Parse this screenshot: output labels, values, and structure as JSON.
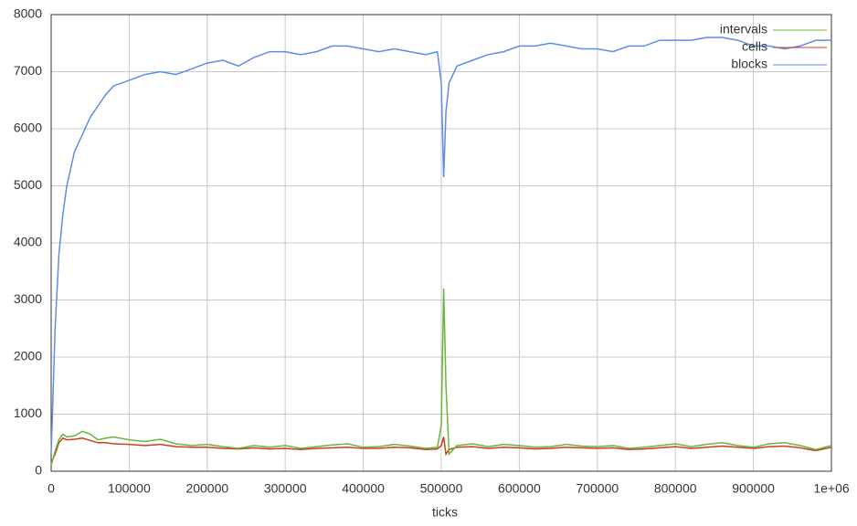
{
  "chart_data": {
    "type": "line",
    "x_label": "ticks",
    "x": [
      0,
      5000,
      10000,
      15000,
      20000,
      30000,
      40000,
      50000,
      60000,
      70000,
      80000,
      100000,
      120000,
      140000,
      160000,
      180000,
      200000,
      220000,
      240000,
      260000,
      280000,
      300000,
      320000,
      340000,
      360000,
      380000,
      400000,
      420000,
      440000,
      460000,
      480000,
      495000,
      500000,
      503000,
      506000,
      510000,
      520000,
      540000,
      560000,
      580000,
      600000,
      620000,
      640000,
      660000,
      680000,
      700000,
      720000,
      740000,
      760000,
      780000,
      800000,
      820000,
      840000,
      860000,
      880000,
      900000,
      920000,
      940000,
      960000,
      980000,
      1000000
    ],
    "series": [
      {
        "name": "intervals",
        "color": "#6ab43c",
        "values": [
          100,
          350,
          550,
          650,
          600,
          620,
          700,
          650,
          550,
          580,
          600,
          550,
          520,
          560,
          480,
          450,
          470,
          430,
          400,
          450,
          420,
          450,
          400,
          430,
          460,
          480,
          420,
          430,
          470,
          440,
          400,
          420,
          800,
          3200,
          1500,
          300,
          450,
          480,
          430,
          470,
          450,
          420,
          430,
          470,
          440,
          430,
          450,
          400,
          420,
          450,
          480,
          430,
          470,
          500,
          450,
          420,
          480,
          500,
          450,
          380,
          450
        ]
      },
      {
        "name": "cells",
        "color": "#c8401e",
        "values": [
          150,
          300,
          500,
          580,
          550,
          560,
          580,
          540,
          500,
          500,
          480,
          470,
          450,
          470,
          430,
          420,
          420,
          400,
          390,
          410,
          390,
          400,
          380,
          400,
          410,
          420,
          400,
          400,
          420,
          410,
          380,
          390,
          450,
          600,
          300,
          380,
          420,
          430,
          400,
          420,
          410,
          390,
          400,
          420,
          410,
          400,
          410,
          380,
          390,
          410,
          430,
          400,
          420,
          440,
          420,
          400,
          430,
          440,
          410,
          360,
          420
        ]
      },
      {
        "name": "blocks",
        "color": "#5b8de8",
        "values": [
          300,
          2500,
          3800,
          4500,
          5000,
          5600,
          5900,
          6200,
          6400,
          6600,
          6750,
          6850,
          6950,
          7000,
          6950,
          7050,
          7150,
          7200,
          7100,
          7250,
          7350,
          7350,
          7300,
          7350,
          7450,
          7450,
          7400,
          7350,
          7400,
          7350,
          7300,
          7350,
          6800,
          5150,
          6300,
          6800,
          7100,
          7200,
          7300,
          7350,
          7450,
          7450,
          7500,
          7450,
          7400,
          7400,
          7350,
          7450,
          7450,
          7550,
          7550,
          7550,
          7600,
          7600,
          7550,
          7450,
          7450,
          7400,
          7450,
          7550,
          7550
        ]
      }
    ],
    "xlim": [
      0,
      1000000
    ],
    "xticks": [
      0,
      100000,
      200000,
      300000,
      400000,
      500000,
      600000,
      700000,
      800000,
      900000,
      {
        "value": 1000000,
        "label": "1e+06"
      }
    ],
    "ylim": [
      0,
      8000
    ],
    "yticks": [
      0,
      1000,
      2000,
      3000,
      4000,
      5000,
      6000,
      7000,
      8000
    ],
    "grid": true,
    "legend": "top-right"
  }
}
